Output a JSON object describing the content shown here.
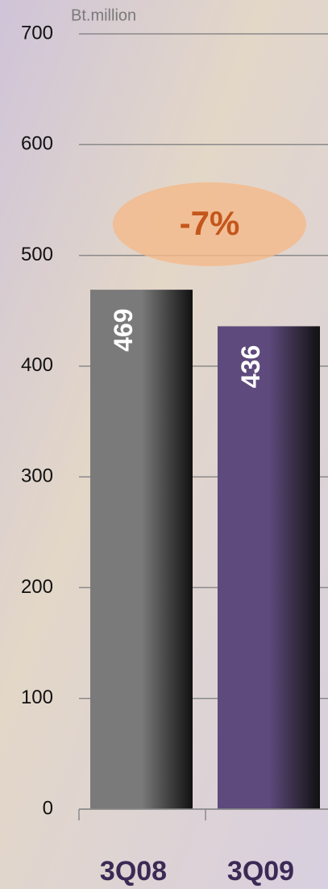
{
  "chart_data": {
    "type": "bar",
    "y_label": "Bt.million",
    "categories": [
      "3Q08",
      "3Q09"
    ],
    "values": [
      469,
      436
    ],
    "colors": [
      "#7a7a7a",
      "#5e4a7c"
    ],
    "ylim": [
      0,
      700
    ],
    "yticks": [
      0,
      100,
      200,
      300,
      400,
      500,
      600,
      700
    ],
    "grid": true,
    "annotation": "-7%"
  }
}
